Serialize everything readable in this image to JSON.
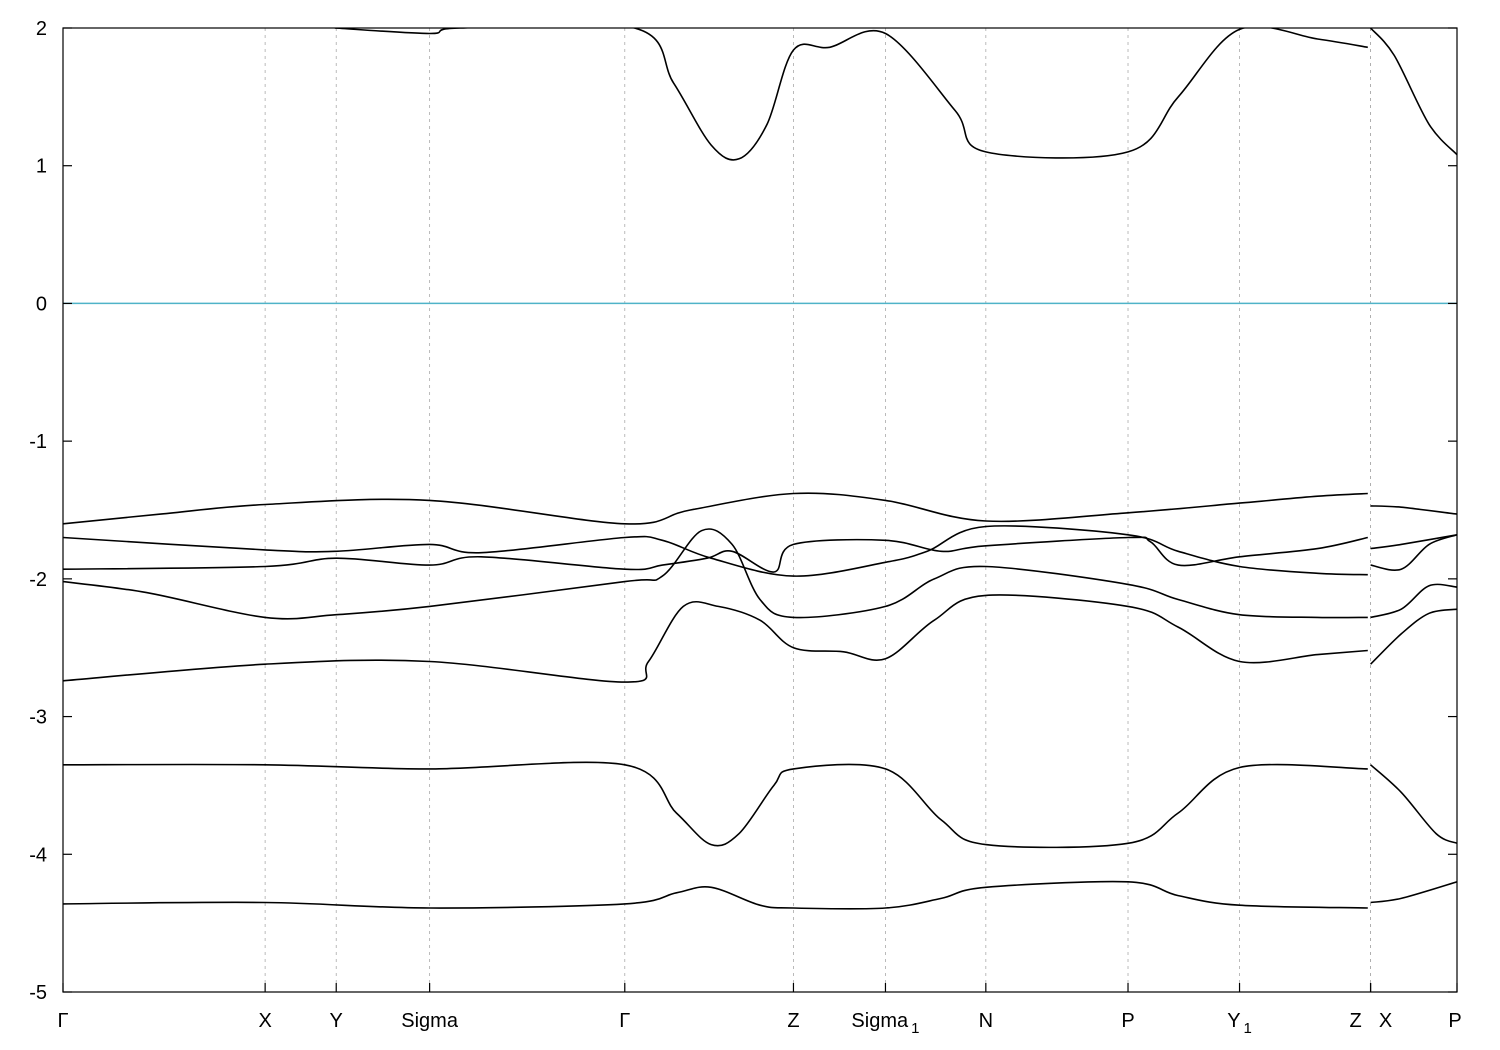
{
  "chart_data": {
    "type": "line",
    "title": "",
    "xlabel": "",
    "ylabel": "",
    "ylim": [
      -5,
      2
    ],
    "yticks": [
      "2",
      "1",
      "0",
      "-1",
      "-2",
      "-3",
      "-4",
      "-5"
    ],
    "xlim": [
      0,
      1
    ],
    "grid": "vertical dashed at high-symmetry points",
    "legend": "none",
    "colors": {
      "band": "#000000",
      "fermi": "#4fb3c8",
      "grid": "#aaaaaa",
      "frame": "#000000"
    },
    "kpoints": [
      {
        "x": 0.0,
        "label": "Γ",
        "sub": ""
      },
      {
        "x": 0.145,
        "label": "X",
        "sub": ""
      },
      {
        "x": 0.196,
        "label": "Y",
        "sub": ""
      },
      {
        "x": 0.263,
        "label": "Sigma",
        "sub": ""
      },
      {
        "x": 0.403,
        "label": "Γ",
        "sub": ""
      },
      {
        "x": 0.524,
        "label": "Z",
        "sub": ""
      },
      {
        "x": 0.59,
        "label": "Sigma",
        "sub": "1"
      },
      {
        "x": 0.662,
        "label": "N",
        "sub": ""
      },
      {
        "x": 0.764,
        "label": "P",
        "sub": ""
      },
      {
        "x": 0.844,
        "label": "Y",
        "sub": "1"
      },
      {
        "x": 0.938,
        "label": "Z",
        "sub": ""
      },
      {
        "x": 0.938,
        "label": "X",
        "sub": ""
      },
      {
        "x": 1.0,
        "label": "P",
        "sub": ""
      }
    ],
    "fermi_level": 0,
    "series": [
      {
        "values": [
          [
            0.195,
            2.0
          ],
          [
            0.263,
            1.96
          ],
          [
            0.285,
            2.0
          ],
          [
            0.41,
            2.0
          ],
          [
            0.438,
            1.6
          ],
          [
            0.465,
            1.15
          ],
          [
            0.485,
            1.05
          ],
          [
            0.505,
            1.3
          ],
          [
            0.524,
            1.84
          ],
          [
            0.55,
            1.86
          ],
          [
            0.59,
            1.96
          ],
          [
            0.64,
            1.4
          ],
          [
            0.662,
            1.1
          ],
          [
            0.764,
            1.1
          ],
          [
            0.8,
            1.5
          ],
          [
            0.844,
            1.99
          ],
          [
            0.9,
            1.92
          ],
          [
            0.936,
            1.86
          ]
        ]
      },
      {
        "values": [
          [
            0.938,
            2.0
          ],
          [
            0.955,
            1.8
          ],
          [
            0.98,
            1.3
          ],
          [
            1.0,
            1.08
          ]
        ]
      },
      {
        "values": [
          [
            0.0,
            -1.6
          ],
          [
            0.07,
            -1.53
          ],
          [
            0.145,
            -1.46
          ],
          [
            0.263,
            -1.43
          ],
          [
            0.403,
            -1.6
          ],
          [
            0.45,
            -1.5
          ],
          [
            0.524,
            -1.38
          ],
          [
            0.59,
            -1.43
          ],
          [
            0.662,
            -1.58
          ],
          [
            0.764,
            -1.52
          ],
          [
            0.844,
            -1.45
          ],
          [
            0.9,
            -1.4
          ],
          [
            0.936,
            -1.38
          ]
        ]
      },
      {
        "values": [
          [
            0.938,
            -1.47
          ],
          [
            0.96,
            -1.48
          ],
          [
            1.0,
            -1.53
          ]
        ]
      },
      {
        "values": [
          [
            0.0,
            -1.7
          ],
          [
            0.145,
            -1.79
          ],
          [
            0.196,
            -1.8
          ],
          [
            0.263,
            -1.75
          ],
          [
            0.3,
            -1.81
          ],
          [
            0.403,
            -1.7
          ],
          [
            0.43,
            -1.72
          ],
          [
            0.465,
            -1.85
          ],
          [
            0.524,
            -1.98
          ],
          [
            0.59,
            -1.88
          ],
          [
            0.62,
            -1.8
          ],
          [
            0.662,
            -1.62
          ],
          [
            0.764,
            -1.68
          ],
          [
            0.8,
            -1.8
          ],
          [
            0.844,
            -1.91
          ],
          [
            0.9,
            -1.96
          ],
          [
            0.936,
            -1.97
          ]
        ]
      },
      {
        "values": [
          [
            0.938,
            -1.9
          ],
          [
            0.96,
            -1.93
          ],
          [
            0.98,
            -1.75
          ],
          [
            1.0,
            -1.68
          ]
        ]
      },
      {
        "values": [
          [
            0.0,
            -1.93
          ],
          [
            0.145,
            -1.91
          ],
          [
            0.196,
            -1.85
          ],
          [
            0.263,
            -1.9
          ],
          [
            0.3,
            -1.84
          ],
          [
            0.403,
            -1.93
          ],
          [
            0.43,
            -1.9
          ],
          [
            0.462,
            -1.85
          ],
          [
            0.48,
            -1.8
          ],
          [
            0.51,
            -1.95
          ],
          [
            0.524,
            -1.75
          ],
          [
            0.59,
            -1.72
          ],
          [
            0.63,
            -1.8
          ],
          [
            0.662,
            -1.76
          ],
          [
            0.764,
            -1.7
          ],
          [
            0.78,
            -1.73
          ],
          [
            0.8,
            -1.9
          ],
          [
            0.844,
            -1.84
          ],
          [
            0.9,
            -1.78
          ],
          [
            0.936,
            -1.7
          ]
        ]
      },
      {
        "values": [
          [
            0.938,
            -1.78
          ],
          [
            0.96,
            -1.75
          ],
          [
            1.0,
            -1.68
          ]
        ]
      },
      {
        "values": [
          [
            0.0,
            -2.02
          ],
          [
            0.06,
            -2.1
          ],
          [
            0.145,
            -2.28
          ],
          [
            0.196,
            -2.26
          ],
          [
            0.263,
            -2.2
          ],
          [
            0.403,
            -2.02
          ],
          [
            0.43,
            -1.98
          ],
          [
            0.458,
            -1.65
          ],
          [
            0.48,
            -1.75
          ],
          [
            0.5,
            -2.15
          ],
          [
            0.524,
            -2.28
          ],
          [
            0.59,
            -2.2
          ],
          [
            0.625,
            -2.0
          ],
          [
            0.662,
            -1.91
          ],
          [
            0.764,
            -2.04
          ],
          [
            0.8,
            -2.15
          ],
          [
            0.844,
            -2.26
          ],
          [
            0.9,
            -2.28
          ],
          [
            0.936,
            -2.28
          ]
        ]
      },
      {
        "values": [
          [
            0.938,
            -2.28
          ],
          [
            0.96,
            -2.22
          ],
          [
            0.98,
            -2.05
          ],
          [
            1.0,
            -2.06
          ]
        ]
      },
      {
        "values": [
          [
            0.0,
            -2.74
          ],
          [
            0.145,
            -2.62
          ],
          [
            0.263,
            -2.6
          ],
          [
            0.403,
            -2.75
          ],
          [
            0.42,
            -2.6
          ],
          [
            0.445,
            -2.2
          ],
          [
            0.47,
            -2.2
          ],
          [
            0.5,
            -2.3
          ],
          [
            0.524,
            -2.5
          ],
          [
            0.56,
            -2.53
          ],
          [
            0.59,
            -2.58
          ],
          [
            0.625,
            -2.3
          ],
          [
            0.662,
            -2.12
          ],
          [
            0.764,
            -2.2
          ],
          [
            0.8,
            -2.35
          ],
          [
            0.844,
            -2.6
          ],
          [
            0.9,
            -2.55
          ],
          [
            0.936,
            -2.52
          ]
        ]
      },
      {
        "values": [
          [
            0.938,
            -2.62
          ],
          [
            0.96,
            -2.4
          ],
          [
            0.98,
            -2.25
          ],
          [
            1.0,
            -2.22
          ]
        ]
      },
      {
        "values": [
          [
            0.0,
            -3.35
          ],
          [
            0.145,
            -3.35
          ],
          [
            0.263,
            -3.38
          ],
          [
            0.403,
            -3.35
          ],
          [
            0.44,
            -3.7
          ],
          [
            0.465,
            -3.93
          ],
          [
            0.485,
            -3.85
          ],
          [
            0.51,
            -3.5
          ],
          [
            0.524,
            -3.38
          ],
          [
            0.59,
            -3.38
          ],
          [
            0.63,
            -3.75
          ],
          [
            0.662,
            -3.93
          ],
          [
            0.764,
            -3.92
          ],
          [
            0.8,
            -3.7
          ],
          [
            0.844,
            -3.37
          ],
          [
            0.936,
            -3.38
          ]
        ]
      },
      {
        "values": [
          [
            0.938,
            -3.35
          ],
          [
            0.96,
            -3.55
          ],
          [
            0.985,
            -3.85
          ],
          [
            1.0,
            -3.92
          ]
        ]
      },
      {
        "values": [
          [
            0.0,
            -4.36
          ],
          [
            0.145,
            -4.35
          ],
          [
            0.263,
            -4.39
          ],
          [
            0.403,
            -4.36
          ],
          [
            0.44,
            -4.28
          ],
          [
            0.465,
            -4.24
          ],
          [
            0.5,
            -4.37
          ],
          [
            0.524,
            -4.39
          ],
          [
            0.59,
            -4.39
          ],
          [
            0.63,
            -4.32
          ],
          [
            0.662,
            -4.24
          ],
          [
            0.764,
            -4.2
          ],
          [
            0.8,
            -4.3
          ],
          [
            0.844,
            -4.37
          ],
          [
            0.936,
            -4.39
          ]
        ]
      },
      {
        "values": [
          [
            0.938,
            -4.35
          ],
          [
            0.96,
            -4.32
          ],
          [
            1.0,
            -4.2
          ]
        ]
      }
    ]
  }
}
